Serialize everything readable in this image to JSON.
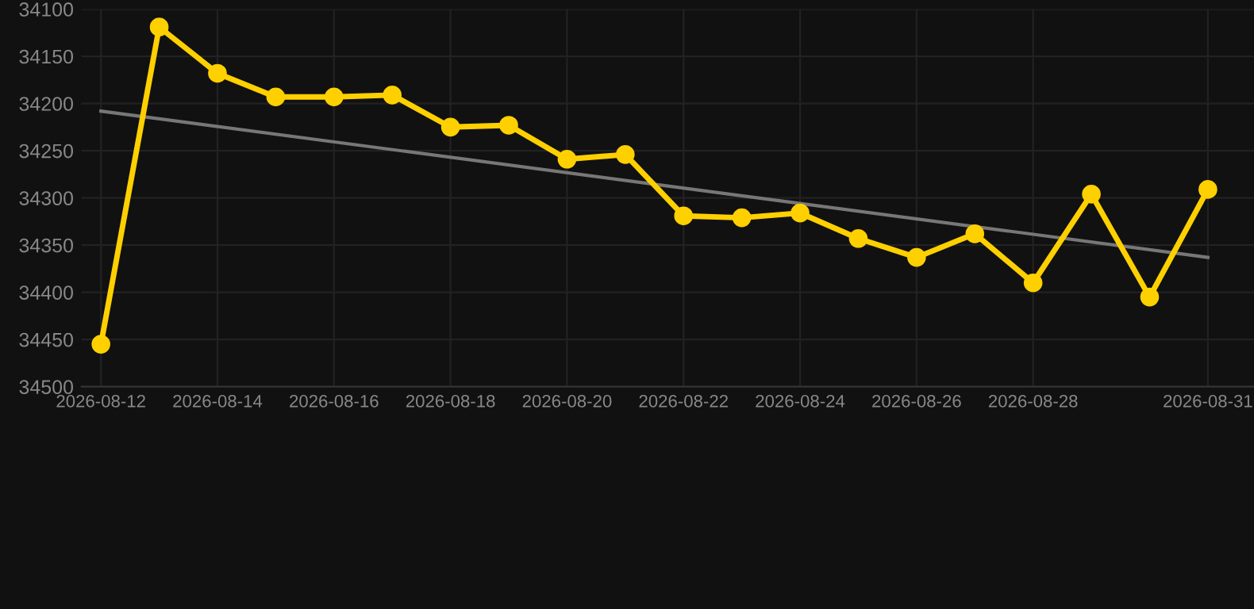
{
  "chart_data": {
    "type": "line",
    "x": [
      "2026-08-12",
      "2026-08-13",
      "2026-08-14",
      "2026-08-15",
      "2026-08-16",
      "2026-08-17",
      "2026-08-18",
      "2026-08-19",
      "2026-08-20",
      "2026-08-21",
      "2026-08-22",
      "2026-08-23",
      "2026-08-24",
      "2026-08-25",
      "2026-08-26",
      "2026-08-27",
      "2026-08-28",
      "2026-08-29",
      "2026-08-30",
      "2026-08-31"
    ],
    "series": [
      {
        "color": "#ffd000",
        "marker": "circle",
        "values": [
          34455,
          34119,
          34168,
          34193,
          34193,
          34191,
          34225,
          34223,
          34259,
          34254,
          34319,
          34321,
          34316,
          34343,
          34363,
          34338,
          34390,
          34296,
          34405,
          34291
        ]
      },
      {
        "type": "line",
        "color": "#777777",
        "marker": "none",
        "x": [
          "2026-08-12",
          "2026-08-31"
        ],
        "values": [
          34208,
          34363
        ]
      }
    ],
    "xlim": [
      "2026-08-11T16:00",
      "2026-08-31T19:00"
    ],
    "ylim": [
      34500,
      34100
    ],
    "xticks": [
      "2026-08-12",
      "2026-08-14",
      "2026-08-16",
      "2026-08-18",
      "2026-08-20",
      "2026-08-22",
      "2026-08-24",
      "2026-08-26",
      "2026-08-28",
      "2026-08-31"
    ],
    "yticks": [
      34100,
      34150,
      34200,
      34250,
      34300,
      34350,
      34400,
      34450,
      34500
    ],
    "grid": true,
    "line_style": "solid"
  }
}
